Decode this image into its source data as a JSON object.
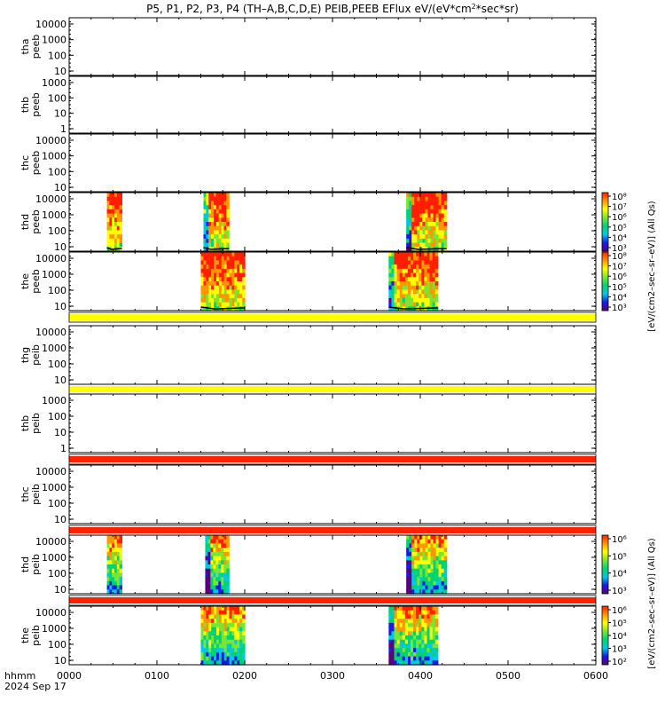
{
  "chart_data": {
    "type": "heatmap",
    "title": "P5, P1, P2, P3, P4 (TH-A,B,C,D,E) PEIB,PEEB EFlux eV/(eV*cm2*sec*sr)",
    "title_parts": [
      "P5, P1, P2, P3, P4 (TH–A,B,C,D,E) PEIB,PEEB EFlux eV/(eV*cm",
      "2",
      "*sec*sr)"
    ],
    "x_label_lines": [
      "hhmm",
      "2024 Sep 17"
    ],
    "x_ticks": [
      "0000",
      "0100",
      "0200",
      "0300",
      "0400",
      "0500",
      "0600"
    ],
    "xlim_hours": [
      0,
      6
    ],
    "y_scale": "log",
    "colormap": [
      "#5a0078",
      "#1a1ae6",
      "#00c8e6",
      "#00d278",
      "#78e632",
      "#ffff00",
      "#ff9600",
      "#ff1e00"
    ],
    "panels": [
      {
        "label": [
          "tha",
          "peeb"
        ],
        "y_ticks": [
          "10",
          "100",
          "1000",
          "10000"
        ],
        "blocks": []
      },
      {
        "label": [
          "thb",
          "peeb"
        ],
        "y_ticks": [
          "1",
          "10",
          "100",
          "1000"
        ],
        "blocks": []
      },
      {
        "label": [
          "thc",
          "peeb"
        ],
        "y_ticks": [
          "10",
          "100",
          "1000",
          "10000"
        ],
        "blocks": []
      },
      {
        "label": [
          "thd",
          "peeb"
        ],
        "y_ticks": [
          "10",
          "100",
          "1000",
          "10000"
        ],
        "blocks": [
          [
            0.43,
            0.6
          ],
          [
            1.53,
            1.82
          ],
          [
            3.84,
            4.3
          ]
        ],
        "trace": true
      },
      {
        "label": [
          "the",
          "peeb"
        ],
        "y_ticks": [
          "10",
          "100",
          "1000",
          "10000"
        ],
        "blocks": [
          [
            1.5,
            2.0
          ],
          [
            3.64,
            4.2
          ]
        ],
        "trace": true
      },
      {
        "label": [
          "thg",
          "peib"
        ],
        "y_ticks": [
          "10",
          "100",
          "1000",
          "10000"
        ],
        "blocks": []
      },
      {
        "label": [
          "thb",
          "peib"
        ],
        "y_ticks": [
          "1",
          "10",
          "100",
          "1000"
        ],
        "blocks": []
      },
      {
        "label": [
          "thc",
          "peib"
        ],
        "y_ticks": [
          "10",
          "100",
          "1000",
          "10000"
        ],
        "blocks": []
      },
      {
        "label": [
          "thd",
          "peib"
        ],
        "y_ticks": [
          "10",
          "100",
          "1000",
          "10000"
        ],
        "blocks": [
          [
            0.43,
            0.6
          ],
          [
            1.55,
            1.82
          ],
          [
            3.84,
            4.3
          ]
        ]
      },
      {
        "label": [
          "the",
          "peib"
        ],
        "y_ticks": [
          "10",
          "100",
          "1000",
          "10000"
        ],
        "blocks": [
          [
            1.5,
            2.0
          ],
          [
            3.64,
            4.2
          ]
        ]
      }
    ],
    "separator_bars": [
      "#ffff00",
      "#ffff00",
      "#ff2000",
      "#ff2000",
      "#ff2000"
    ],
    "colorbars": [
      {
        "ticks": [
          "10³",
          "10⁴",
          "10⁵",
          "10⁶",
          "10⁷",
          "10⁸"
        ]
      },
      {
        "ticks": [
          "10³",
          "10⁴",
          "10⁵",
          "10⁶",
          "10⁷",
          "10⁸"
        ]
      },
      {
        "ticks": [
          "10³",
          "10⁴",
          "10⁵",
          "10⁶"
        ]
      },
      {
        "ticks": [
          "10²",
          "10³",
          "10⁴",
          "10⁵",
          "10⁶"
        ]
      }
    ],
    "colorbar_labels": [
      "[eV/(cm2–sec–sr–eV)] (All Qs)",
      "[eV/(cm2–sec–sr–eV)] (All Qs)"
    ]
  }
}
